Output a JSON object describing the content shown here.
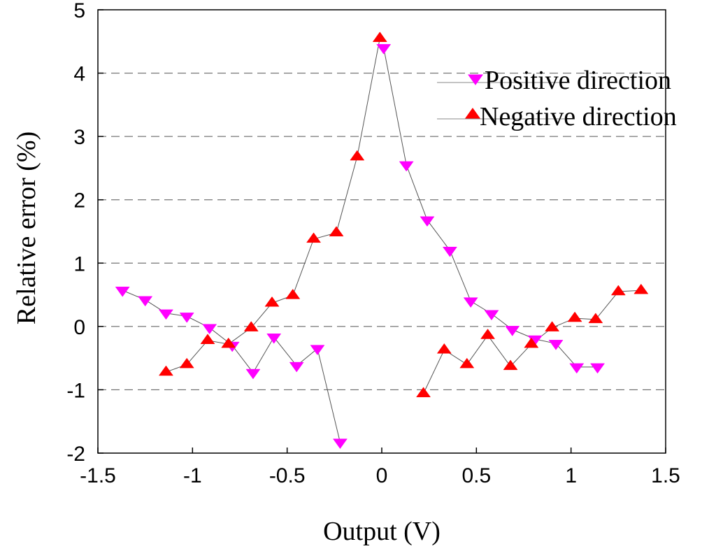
{
  "chart_data": {
    "type": "scatter",
    "title": "",
    "xlabel": "Output (V)",
    "ylabel": "Relative error (%)",
    "xlim": [
      -1.5,
      1.5
    ],
    "ylim": [
      -2,
      5
    ],
    "xticks": [
      -1.5,
      -1,
      -0.5,
      0,
      0.5,
      1,
      1.5
    ],
    "xtick_labels": [
      "-1.5",
      "-1",
      "-0.5",
      "0",
      "0.5",
      "1",
      "1.5"
    ],
    "yticks": [
      -2,
      -1,
      0,
      1,
      2,
      3,
      4,
      5
    ],
    "ytick_labels": [
      "-2",
      "-1",
      "0",
      "1",
      "2",
      "3",
      "4",
      "5"
    ],
    "grid": "horizontal dashed",
    "legend_position": "top-right",
    "series": [
      {
        "name": "Positive direction",
        "marker": "triangle-down",
        "color": "#ff00ff",
        "line_color": "#555555",
        "points": [
          [
            -1.37,
            0.57
          ],
          [
            -1.25,
            0.42
          ],
          [
            -1.14,
            0.21
          ],
          [
            -1.03,
            0.16
          ],
          [
            -0.91,
            -0.02
          ],
          [
            -0.79,
            -0.3
          ],
          [
            -0.68,
            -0.73
          ],
          [
            -0.57,
            -0.17
          ],
          [
            -0.45,
            -0.62
          ],
          [
            -0.34,
            -0.35
          ],
          [
            -0.22,
            -1.83
          ],
          [
            0.01,
            4.4
          ],
          [
            0.13,
            2.55
          ],
          [
            0.24,
            1.68
          ],
          [
            0.36,
            1.2
          ],
          [
            0.47,
            0.4
          ],
          [
            0.58,
            0.2
          ],
          [
            0.69,
            -0.05
          ],
          [
            0.81,
            -0.2
          ],
          [
            0.92,
            -0.27
          ],
          [
            1.03,
            -0.64
          ],
          [
            1.14,
            -0.64
          ]
        ]
      },
      {
        "name": "Negative direction",
        "marker": "triangle-up",
        "color": "#ff0000",
        "line_color": "#555555",
        "points": [
          [
            -1.14,
            -0.72
          ],
          [
            -1.03,
            -0.6
          ],
          [
            -0.92,
            -0.22
          ],
          [
            -0.81,
            -0.28
          ],
          [
            -0.69,
            -0.02
          ],
          [
            -0.58,
            0.37
          ],
          [
            -0.47,
            0.49
          ],
          [
            -0.36,
            1.38
          ],
          [
            -0.24,
            1.48
          ],
          [
            -0.13,
            2.68
          ],
          [
            -0.01,
            4.55
          ],
          [
            0.22,
            -1.06
          ],
          [
            0.33,
            -0.37
          ],
          [
            0.45,
            -0.6
          ],
          [
            0.56,
            -0.14
          ],
          [
            0.68,
            -0.63
          ],
          [
            0.79,
            -0.28
          ],
          [
            0.9,
            -0.02
          ],
          [
            1.02,
            0.13
          ],
          [
            1.13,
            0.11
          ],
          [
            1.25,
            0.55
          ],
          [
            1.37,
            0.57
          ]
        ]
      }
    ]
  }
}
